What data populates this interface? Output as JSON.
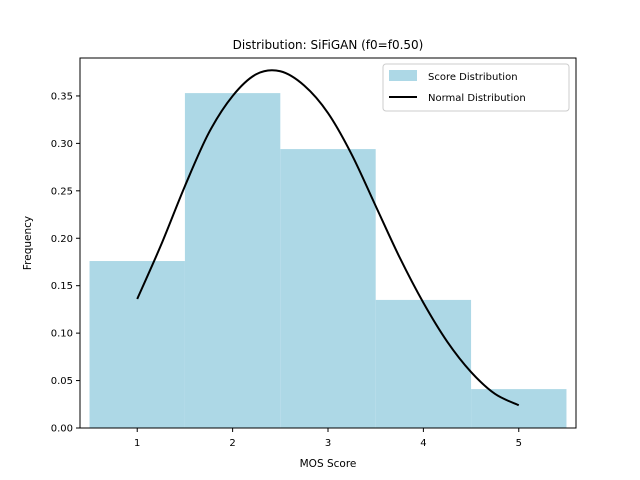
{
  "chart_data": {
    "type": "bar",
    "title": "Distribution: SiFiGAN (f0=f0.50)",
    "xlabel": "MOS Score",
    "ylabel": "Frequency",
    "xlim": [
      0.4,
      5.6
    ],
    "ylim": [
      0,
      0.39
    ],
    "grid": false,
    "legend_placement": "top-right",
    "x_ticks": [
      1,
      2,
      3,
      4,
      5
    ],
    "x_tick_labels": [
      "1",
      "2",
      "3",
      "4",
      "5"
    ],
    "y_ticks": [
      0.0,
      0.05,
      0.1,
      0.15,
      0.2,
      0.25,
      0.3,
      0.35
    ],
    "y_tick_labels": [
      "0.00",
      "0.05",
      "0.10",
      "0.15",
      "0.20",
      "0.25",
      "0.30",
      "0.35"
    ],
    "series": [
      {
        "name": "Score Distribution",
        "kind": "histogram",
        "color": "#add8e6",
        "bins": [
          {
            "x0": 0.5,
            "x1": 1.5,
            "value": 0.176
          },
          {
            "x0": 1.5,
            "x1": 2.5,
            "value": 0.353
          },
          {
            "x0": 2.5,
            "x1": 3.5,
            "value": 0.294
          },
          {
            "x0": 3.5,
            "x1": 4.5,
            "value": 0.135
          },
          {
            "x0": 4.5,
            "x1": 5.5,
            "value": 0.041
          }
        ]
      },
      {
        "name": "Normal Distribution",
        "kind": "line",
        "color": "#000000",
        "x": [
          1.0,
          1.25,
          1.5,
          1.75,
          2.0,
          2.25,
          2.5,
          2.75,
          3.0,
          3.25,
          3.5,
          3.75,
          4.0,
          4.25,
          4.5,
          4.75,
          5.0
        ],
        "y": [
          0.136,
          0.193,
          0.255,
          0.311,
          0.35,
          0.373,
          0.376,
          0.361,
          0.332,
          0.288,
          0.234,
          0.18,
          0.132,
          0.091,
          0.059,
          0.036,
          0.024
        ]
      }
    ]
  }
}
